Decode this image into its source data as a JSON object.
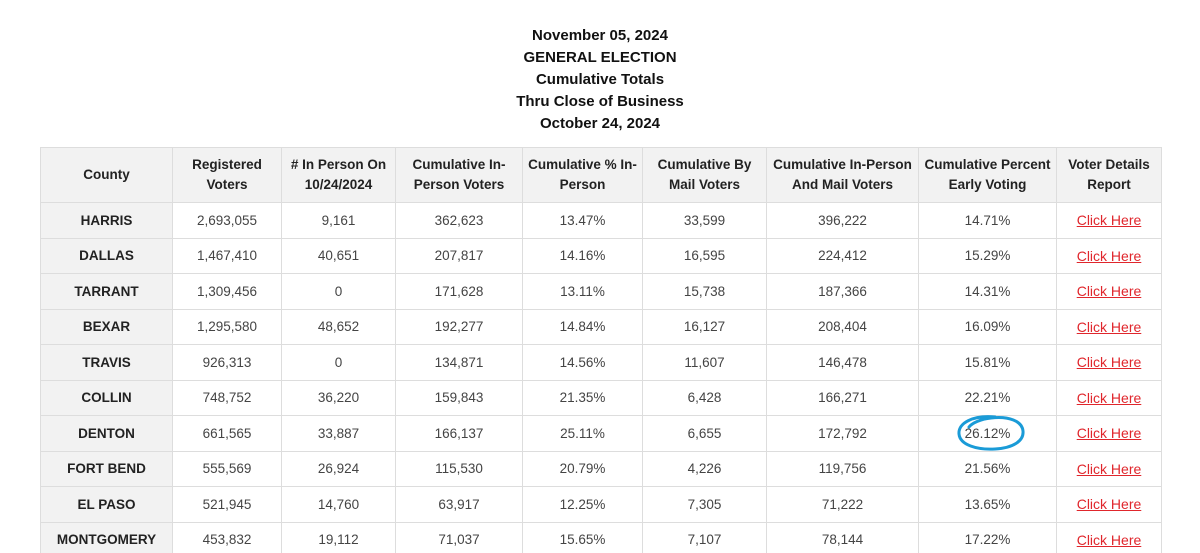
{
  "header": {
    "date_line": "November 05, 2024",
    "election_line": "GENERAL ELECTION",
    "totals_line": "Cumulative Totals",
    "thru_line": "Thru Close of Business",
    "report_date_line": "October 24, 2024"
  },
  "table": {
    "columns": [
      "County",
      "Registered Voters",
      "# In Person On 10/24/2024",
      "Cumulative In-Person Voters",
      "Cumulative % In-Person",
      "Cumulative By Mail Voters",
      "Cumulative In-Person And Mail Voters",
      "Cumulative Percent Early Voting",
      "Voter Details Report"
    ],
    "link_label": "Click Here",
    "rows": [
      {
        "county": "HARRIS",
        "registered": "2,693,055",
        "in_person_day": "9,161",
        "cum_in_person": "362,623",
        "cum_pct_in_person": "13.47%",
        "cum_mail": "33,599",
        "cum_total": "396,222",
        "cum_pct_early": "14.71%"
      },
      {
        "county": "DALLAS",
        "registered": "1,467,410",
        "in_person_day": "40,651",
        "cum_in_person": "207,817",
        "cum_pct_in_person": "14.16%",
        "cum_mail": "16,595",
        "cum_total": "224,412",
        "cum_pct_early": "15.29%"
      },
      {
        "county": "TARRANT",
        "registered": "1,309,456",
        "in_person_day": "0",
        "cum_in_person": "171,628",
        "cum_pct_in_person": "13.11%",
        "cum_mail": "15,738",
        "cum_total": "187,366",
        "cum_pct_early": "14.31%"
      },
      {
        "county": "BEXAR",
        "registered": "1,295,580",
        "in_person_day": "48,652",
        "cum_in_person": "192,277",
        "cum_pct_in_person": "14.84%",
        "cum_mail": "16,127",
        "cum_total": "208,404",
        "cum_pct_early": "16.09%"
      },
      {
        "county": "TRAVIS",
        "registered": "926,313",
        "in_person_day": "0",
        "cum_in_person": "134,871",
        "cum_pct_in_person": "14.56%",
        "cum_mail": "11,607",
        "cum_total": "146,478",
        "cum_pct_early": "15.81%"
      },
      {
        "county": "COLLIN",
        "registered": "748,752",
        "in_person_day": "36,220",
        "cum_in_person": "159,843",
        "cum_pct_in_person": "21.35%",
        "cum_mail": "6,428",
        "cum_total": "166,271",
        "cum_pct_early": "22.21%"
      },
      {
        "county": "DENTON",
        "registered": "661,565",
        "in_person_day": "33,887",
        "cum_in_person": "166,137",
        "cum_pct_in_person": "25.11%",
        "cum_mail": "6,655",
        "cum_total": "172,792",
        "cum_pct_early": "26.12%"
      },
      {
        "county": "FORT BEND",
        "registered": "555,569",
        "in_person_day": "26,924",
        "cum_in_person": "115,530",
        "cum_pct_in_person": "20.79%",
        "cum_mail": "4,226",
        "cum_total": "119,756",
        "cum_pct_early": "21.56%"
      },
      {
        "county": "EL PASO",
        "registered": "521,945",
        "in_person_day": "14,760",
        "cum_in_person": "63,917",
        "cum_pct_in_person": "12.25%",
        "cum_mail": "7,305",
        "cum_total": "71,222",
        "cum_pct_early": "13.65%"
      },
      {
        "county": "MONTGOMERY",
        "registered": "453,832",
        "in_person_day": "19,112",
        "cum_in_person": "71,037",
        "cum_pct_in_person": "15.65%",
        "cum_mail": "7,107",
        "cum_total": "78,144",
        "cum_pct_early": "17.22%"
      }
    ]
  },
  "annotation": {
    "circled_row": 6,
    "circled_column": "cum_pct_early",
    "color": "#1a9bd7"
  },
  "colors": {
    "header_bg": "#f2f2f2",
    "border": "#dddddd",
    "link": "#e0262c"
  }
}
